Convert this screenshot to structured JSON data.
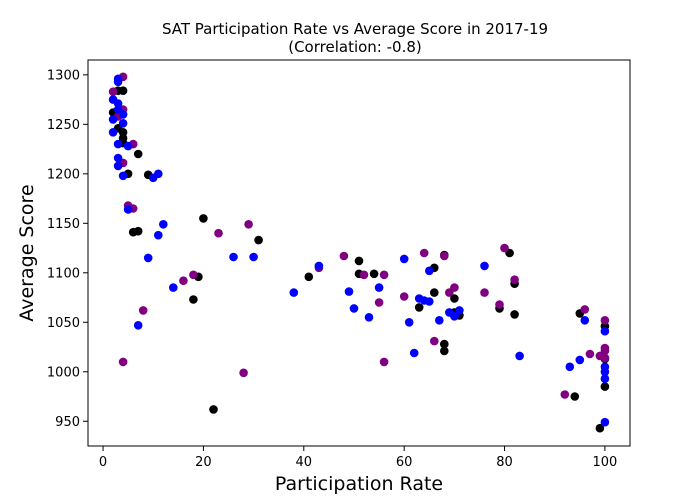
{
  "chart_data": {
    "type": "scatter",
    "title": "SAT Participation Rate vs Average Score in 2017-19",
    "subtitle": "(Correlation: -0.8)",
    "xlabel": "Participation Rate",
    "ylabel": "Average Score",
    "xlim": [
      -3,
      105
    ],
    "ylim": [
      925,
      1315
    ],
    "xticks": [
      0,
      20,
      40,
      60,
      80,
      100
    ],
    "yticks": [
      950,
      1000,
      1050,
      1100,
      1150,
      1200,
      1250,
      1300
    ],
    "grid": false,
    "legend": "none",
    "series": [
      {
        "color": "#000000",
        "points": [
          [
            2,
            1262
          ],
          [
            3,
            1284
          ],
          [
            4,
            1284
          ],
          [
            3,
            1246
          ],
          [
            4,
            1236
          ],
          [
            4,
            1231
          ],
          [
            4,
            1242
          ],
          [
            5,
            1200
          ],
          [
            7,
            1220
          ],
          [
            9,
            1199
          ],
          [
            6,
            1141
          ],
          [
            7,
            1142
          ],
          [
            20,
            1155
          ],
          [
            18,
            1073
          ],
          [
            19,
            1096
          ],
          [
            22,
            962
          ],
          [
            31,
            1133
          ],
          [
            41,
            1096
          ],
          [
            51,
            1112
          ],
          [
            51,
            1099
          ],
          [
            54,
            1099
          ],
          [
            63,
            1065
          ],
          [
            66,
            1105
          ],
          [
            66,
            1080
          ],
          [
            68,
            1118
          ],
          [
            68,
            1028
          ],
          [
            68,
            1021
          ],
          [
            70,
            1074
          ],
          [
            70,
            1060
          ],
          [
            71,
            1057
          ],
          [
            79,
            1064
          ],
          [
            81,
            1120
          ],
          [
            82,
            1089
          ],
          [
            82,
            1058
          ],
          [
            94,
            975
          ],
          [
            95,
            1059
          ],
          [
            99,
            943
          ],
          [
            100,
            1046
          ],
          [
            100,
            1013
          ],
          [
            100,
            985
          ]
        ]
      },
      {
        "color": "#800080",
        "points": [
          [
            2,
            1283
          ],
          [
            4,
            1298
          ],
          [
            4,
            1265
          ],
          [
            3,
            1258
          ],
          [
            4,
            1211
          ],
          [
            6,
            1230
          ],
          [
            5,
            1168
          ],
          [
            6,
            1165
          ],
          [
            4,
            1010
          ],
          [
            8,
            1062
          ],
          [
            16,
            1092
          ],
          [
            18,
            1098
          ],
          [
            23,
            1140
          ],
          [
            28,
            999
          ],
          [
            29,
            1149
          ],
          [
            43,
            1105
          ],
          [
            48,
            1117
          ],
          [
            52,
            1098
          ],
          [
            55,
            1070
          ],
          [
            56,
            1098
          ],
          [
            56,
            1010
          ],
          [
            60,
            1076
          ],
          [
            64,
            1120
          ],
          [
            66,
            1031
          ],
          [
            68,
            1117
          ],
          [
            69,
            1080
          ],
          [
            70,
            1085
          ],
          [
            76,
            1080
          ],
          [
            79,
            1068
          ],
          [
            80,
            1125
          ],
          [
            82,
            1093
          ],
          [
            92,
            977
          ],
          [
            96,
            1063
          ],
          [
            97,
            1018
          ],
          [
            99,
            1016
          ],
          [
            100,
            1052
          ],
          [
            100,
            1024
          ],
          [
            100,
            1021
          ],
          [
            100,
            1014
          ]
        ]
      },
      {
        "color": "#0000ff",
        "points": [
          [
            2,
            1275
          ],
          [
            3,
            1296
          ],
          [
            3,
            1293
          ],
          [
            3,
            1271
          ],
          [
            2,
            1255
          ],
          [
            3,
            1265
          ],
          [
            2,
            1242
          ],
          [
            3,
            1230
          ],
          [
            3,
            1216
          ],
          [
            3,
            1208
          ],
          [
            4,
            1198
          ],
          [
            4,
            1260
          ],
          [
            4,
            1251
          ],
          [
            5,
            1228
          ],
          [
            5,
            1164
          ],
          [
            10,
            1196
          ],
          [
            11,
            1200
          ],
          [
            11,
            1138
          ],
          [
            12,
            1149
          ],
          [
            9,
            1115
          ],
          [
            7,
            1047
          ],
          [
            14,
            1085
          ],
          [
            26,
            1116
          ],
          [
            30,
            1116
          ],
          [
            38,
            1080
          ],
          [
            43,
            1107
          ],
          [
            49,
            1081
          ],
          [
            50,
            1064
          ],
          [
            53,
            1055
          ],
          [
            55,
            1085
          ],
          [
            60,
            1114
          ],
          [
            61,
            1050
          ],
          [
            62,
            1019
          ],
          [
            63,
            1074
          ],
          [
            65,
            1102
          ],
          [
            64,
            1072
          ],
          [
            65,
            1071
          ],
          [
            67,
            1052
          ],
          [
            69,
            1060
          ],
          [
            70,
            1056
          ],
          [
            71,
            1062
          ],
          [
            76,
            1107
          ],
          [
            83,
            1016
          ],
          [
            93,
            1005
          ],
          [
            95,
            1012
          ],
          [
            96,
            1052
          ],
          [
            100,
            1041
          ],
          [
            100,
            1005
          ],
          [
            100,
            1000
          ],
          [
            100,
            993
          ],
          [
            100,
            949
          ]
        ]
      }
    ]
  }
}
